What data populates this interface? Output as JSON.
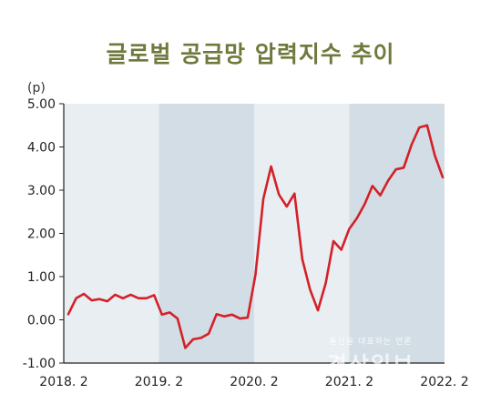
{
  "chart_data": {
    "type": "line",
    "title": "글로벌 공급망 압력지수 추이",
    "ylabel": "(p)",
    "xlabel": "",
    "ylim": [
      -1.0,
      5.0
    ],
    "grid": false,
    "legend": "none",
    "yticks": [
      -1.0,
      0.0,
      1.0,
      2.0,
      3.0,
      4.0,
      5.0
    ],
    "ytick_labels": [
      "-1.00",
      "0.00",
      "1.00",
      "2.00",
      "3.00",
      "4.00",
      "5.00"
    ],
    "xtick_labels": [
      "2018. 2",
      "2019. 2",
      "2020. 2",
      "2021. 2",
      "2022. 2"
    ],
    "bands": [
      {
        "from": "2018. 2",
        "to": "2019. 2",
        "color": "#e9eef3"
      },
      {
        "from": "2019. 2",
        "to": "2020. 2",
        "color": "#d2dde5"
      },
      {
        "from": "2020. 2",
        "to": "2021. 2",
        "color": "#e9eef3"
      },
      {
        "from": "2021. 2",
        "to": "2022. 2",
        "color": "#d2dde5"
      }
    ],
    "line_color": "#d42028",
    "series": [
      {
        "x": [
          "2018-02",
          "2018-03",
          "2018-04",
          "2018-05",
          "2018-06",
          "2018-07",
          "2018-08",
          "2018-09",
          "2018-10",
          "2018-11",
          "2018-12",
          "2019-01",
          "2019-02",
          "2019-03",
          "2019-04",
          "2019-05",
          "2019-06",
          "2019-07",
          "2019-08",
          "2019-09",
          "2019-10",
          "2019-11",
          "2019-12",
          "2020-01",
          "2020-02",
          "2020-03",
          "2020-04",
          "2020-05",
          "2020-06",
          "2020-07",
          "2020-08",
          "2020-09",
          "2020-10",
          "2020-11",
          "2020-12",
          "2021-01",
          "2021-02",
          "2021-03",
          "2021-04",
          "2021-05",
          "2021-06",
          "2021-07",
          "2021-08",
          "2021-09",
          "2021-10",
          "2021-11",
          "2021-12",
          "2022-01",
          "2022-02"
        ],
        "values": [
          0.13,
          0.5,
          0.6,
          0.45,
          0.48,
          0.43,
          0.58,
          0.5,
          0.58,
          0.5,
          0.5,
          0.57,
          0.12,
          0.17,
          0.03,
          -0.65,
          -0.45,
          -0.42,
          -0.32,
          0.13,
          0.08,
          0.12,
          0.03,
          0.05,
          1.05,
          2.8,
          3.55,
          2.9,
          2.62,
          2.92,
          1.4,
          0.7,
          0.22,
          0.85,
          1.82,
          1.62,
          2.1,
          2.35,
          2.68,
          3.1,
          2.88,
          3.22,
          3.48,
          3.52,
          4.05,
          4.45,
          4.5,
          3.8,
          3.3
        ]
      }
    ]
  },
  "watermark": {
    "tagline": "울산을 대표하는 언론",
    "name": "경상일보"
  }
}
